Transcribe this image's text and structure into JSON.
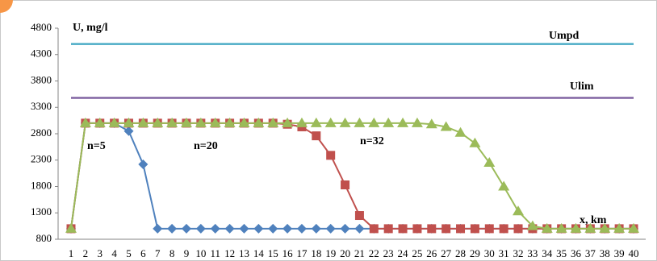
{
  "chart_data": {
    "type": "line",
    "y_label": "U, mg/l",
    "x_label": "x, km",
    "categories": [
      "1",
      "2",
      "3",
      "4",
      "5",
      "6",
      "7",
      "8",
      "9",
      "10",
      "11",
      "12",
      "13",
      "14",
      "15",
      "16",
      "17",
      "18",
      "19",
      "20",
      "21",
      "22",
      "23",
      "24",
      "25",
      "26",
      "27",
      "28",
      "29",
      "30",
      "31",
      "32",
      "33",
      "34",
      "35",
      "36",
      "37",
      "38",
      "39",
      "40"
    ],
    "ylim": [
      800,
      4800
    ],
    "yticks": [
      800,
      1300,
      1800,
      2300,
      2800,
      3300,
      3800,
      4300,
      4800
    ],
    "grid": false,
    "series": [
      {
        "name": "Umpd",
        "color": "#4bacc6",
        "marker": "none",
        "values": [
          4500,
          4500,
          4500,
          4500,
          4500,
          4500,
          4500,
          4500,
          4500,
          4500,
          4500,
          4500,
          4500,
          4500,
          4500,
          4500,
          4500,
          4500,
          4500,
          4500,
          4500,
          4500,
          4500,
          4500,
          4500,
          4500,
          4500,
          4500,
          4500,
          4500,
          4500,
          4500,
          4500,
          4500,
          4500,
          4500,
          4500,
          4500,
          4500,
          4500
        ]
      },
      {
        "name": "Ulim",
        "color": "#8064a2",
        "marker": "none",
        "values": [
          3480,
          3480,
          3480,
          3480,
          3480,
          3480,
          3480,
          3480,
          3480,
          3480,
          3480,
          3480,
          3480,
          3480,
          3480,
          3480,
          3480,
          3480,
          3480,
          3480,
          3480,
          3480,
          3480,
          3480,
          3480,
          3480,
          3480,
          3480,
          3480,
          3480,
          3480,
          3480,
          3480,
          3480,
          3480,
          3480,
          3480,
          3480,
          3480,
          3480
        ]
      },
      {
        "name": "n=5",
        "color": "#4f81bd",
        "marker": "diamond",
        "values": [
          1000,
          3000,
          3000,
          3000,
          2850,
          2220,
          1000,
          1000,
          1000,
          1000,
          1000,
          1000,
          1000,
          1000,
          1000,
          1000,
          1000,
          1000,
          1000,
          1000,
          1000,
          1000,
          1000,
          1000,
          1000,
          1000,
          1000,
          1000,
          1000,
          1000,
          1000,
          1000,
          1000,
          1000,
          1000,
          1000,
          1000,
          1000,
          1000,
          1000
        ]
      },
      {
        "name": "n=20",
        "color": "#c0504d",
        "marker": "square",
        "values": [
          1000,
          3000,
          3000,
          3000,
          3000,
          3000,
          3000,
          3000,
          3000,
          3000,
          3000,
          3000,
          3000,
          3000,
          3000,
          2980,
          2930,
          2760,
          2390,
          1830,
          1250,
          1000,
          1000,
          1000,
          1000,
          1000,
          1000,
          1000,
          1000,
          1000,
          1000,
          1000,
          1000,
          1000,
          1000,
          1000,
          1000,
          1000,
          1000,
          1000
        ]
      },
      {
        "name": "n=32",
        "color": "#9bbb59",
        "marker": "triangle",
        "values": [
          1000,
          3000,
          3000,
          3000,
          3000,
          3000,
          3000,
          3000,
          3000,
          3000,
          3000,
          3000,
          3000,
          3000,
          3000,
          3000,
          3000,
          3000,
          3000,
          3000,
          3000,
          3000,
          3000,
          3000,
          3000,
          2980,
          2930,
          2820,
          2620,
          2250,
          1800,
          1330,
          1050,
          1000,
          1000,
          1000,
          1000,
          1000,
          1000,
          1000
        ]
      }
    ]
  }
}
